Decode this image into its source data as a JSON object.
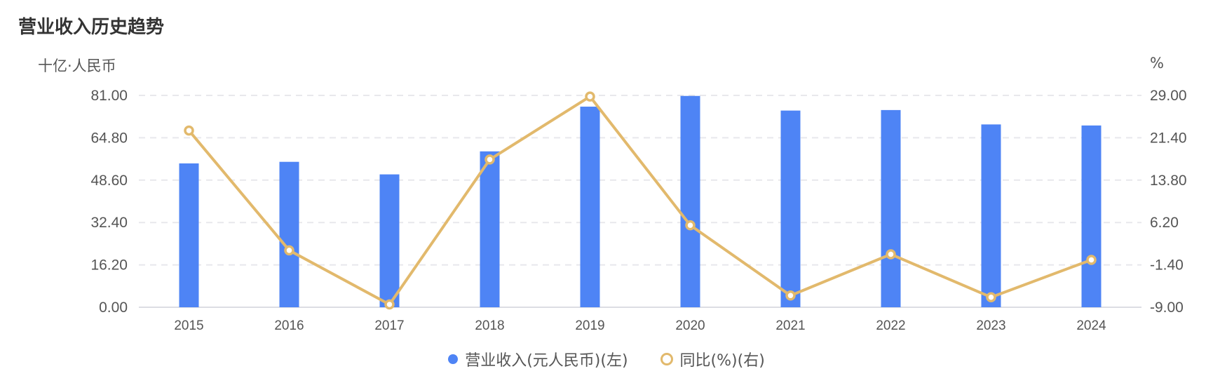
{
  "title": "营业收入历史趋势",
  "left_axis_unit": "十亿·人民币",
  "right_axis_unit": "%",
  "colors": {
    "bar": "#4E84F5",
    "line": "#E2B96C",
    "grid": "#E8E8EC",
    "axis_text": "#555555"
  },
  "legend": [
    {
      "label": "营业收入(元人民币)(左)",
      "marker": "filled-circle"
    },
    {
      "label": "同比(%)(右)",
      "marker": "hollow-circle"
    }
  ],
  "chart_data": {
    "type": "bar+line",
    "title": "营业收入历史趋势",
    "categories": [
      "2015",
      "2016",
      "2017",
      "2018",
      "2019",
      "2020",
      "2021",
      "2022",
      "2023",
      "2024"
    ],
    "series": [
      {
        "name": "营业收入(元人民币)(左)",
        "type": "bar",
        "axis": "left",
        "values": [
          55.0,
          55.6,
          50.8,
          59.6,
          76.7,
          80.8,
          75.2,
          75.4,
          69.9,
          69.5
        ]
      },
      {
        "name": "同比(%)(右)",
        "type": "line",
        "axis": "right",
        "values": [
          22.7,
          1.2,
          -8.5,
          17.5,
          28.8,
          5.7,
          -6.9,
          0.5,
          -7.2,
          -0.5
        ]
      }
    ],
    "left_axis": {
      "label": "十亿·人民币",
      "ticks": [
        "0.00",
        "16.20",
        "32.40",
        "48.60",
        "64.80",
        "81.00"
      ],
      "ylim": [
        0,
        81
      ]
    },
    "right_axis": {
      "label": "%",
      "ticks": [
        "-9.00",
        "-1.40",
        "6.20",
        "13.80",
        "21.40",
        "29.00"
      ],
      "ylim": [
        -9,
        29
      ]
    },
    "grid": true,
    "legend_position": "bottom"
  }
}
